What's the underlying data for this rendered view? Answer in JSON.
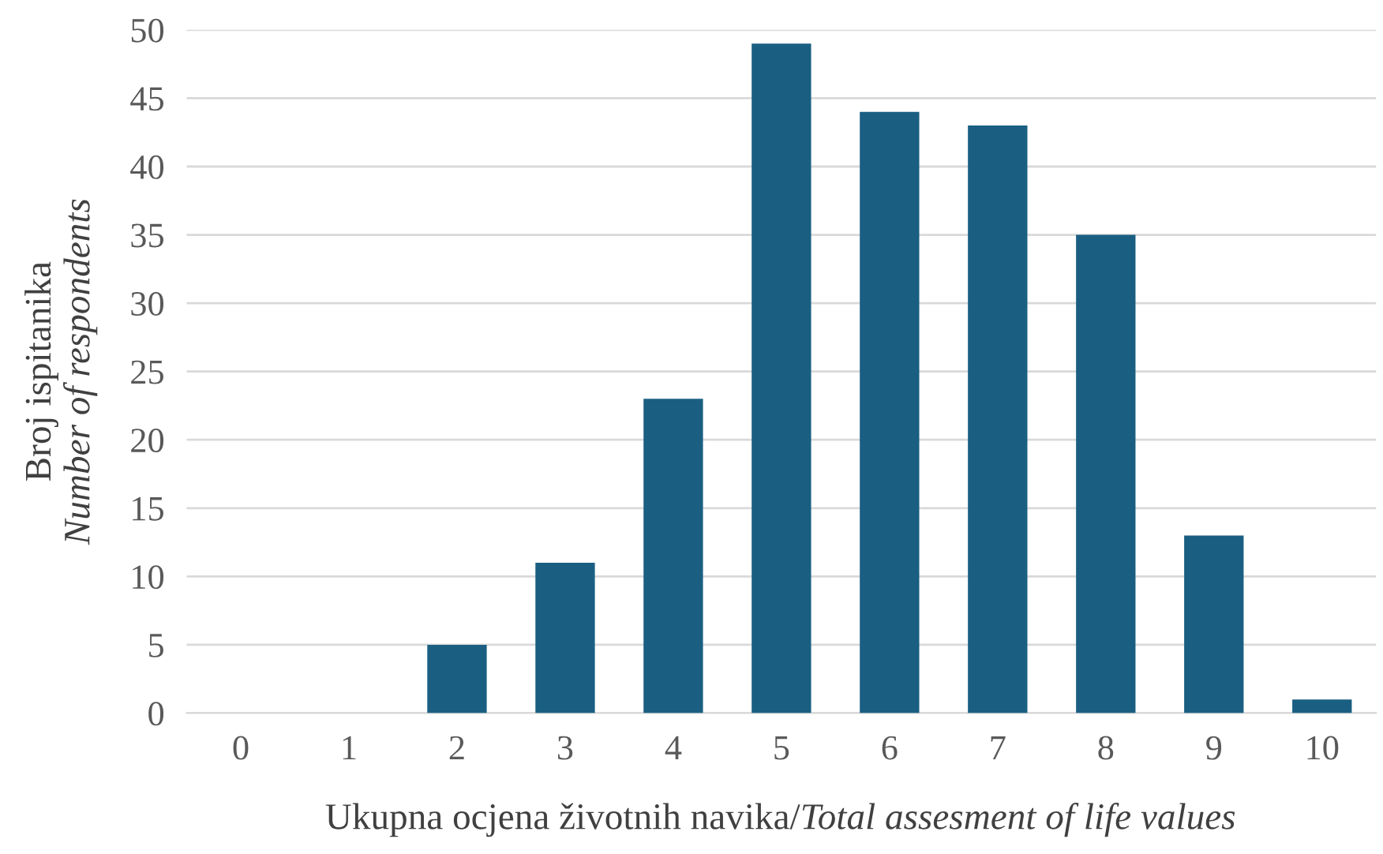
{
  "chart_data": {
    "type": "bar",
    "categories": [
      "0",
      "1",
      "2",
      "3",
      "4",
      "5",
      "6",
      "7",
      "8",
      "9",
      "10"
    ],
    "values": [
      0,
      0,
      5,
      11,
      23,
      49,
      44,
      43,
      35,
      13,
      1
    ],
    "color": "#1a5f82",
    "xlabel": "Ukupna ocjena životnih navika/Total assesment of life values",
    "ylabel": "Broj ispitanika\nNumber of respondents",
    "ylim": [
      0,
      50
    ],
    "yticks": [
      0,
      5,
      10,
      15,
      20,
      25,
      30,
      35,
      40,
      45,
      50
    ],
    "grid": "y",
    "legend": false
  }
}
